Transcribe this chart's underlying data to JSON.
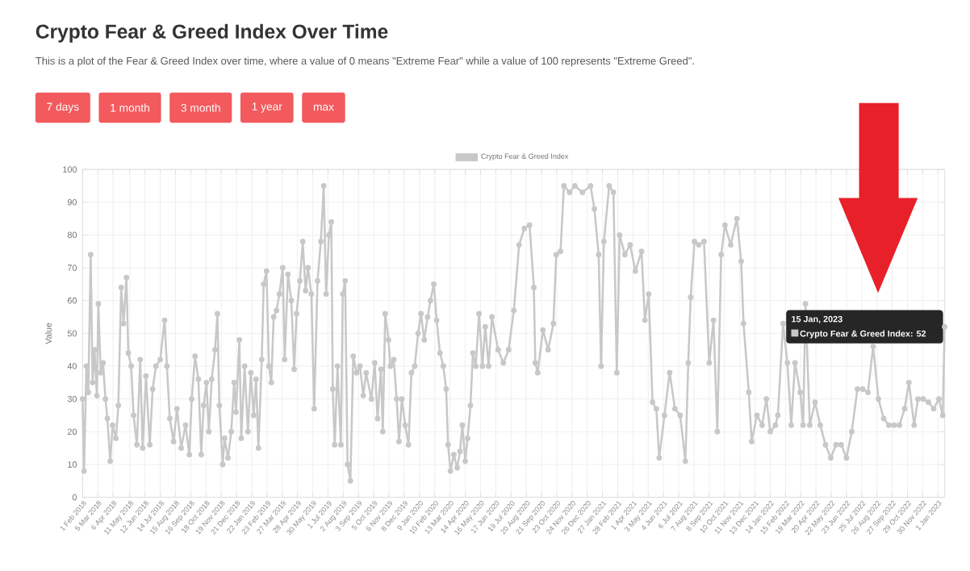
{
  "chart_data": {
    "type": "line",
    "title": "Crypto Fear & Greed Index Over Time",
    "subtitle": "This is a plot of the Fear & Greed Index over time, where a value of 0 means \"Extreme Fear\" while a value of 100 represents \"Extreme Greed\".",
    "ylabel": "Value",
    "annotations": [
      "7 days",
      "1 month",
      "3 month",
      "1 year",
      "max",
      {
        "text": "Crypto Fear & Greed Index: 52",
        "x": "2023-01-15",
        "y": 52
      },
      "15 Jan, 2023"
    ],
    "x": [
      "2018-02-01",
      "2018-02-04",
      "2018-02-09",
      "2018-02-13",
      "2018-02-18",
      "2018-02-22",
      "2018-02-26",
      "2018-03-03",
      "2018-03-06",
      "2018-03-11",
      "2018-03-16",
      "2018-03-21",
      "2018-03-25",
      "2018-03-31",
      "2018-04-05",
      "2018-04-12",
      "2018-04-17",
      "2018-04-23",
      "2018-04-28",
      "2018-05-04",
      "2018-05-08",
      "2018-05-14",
      "2018-05-19",
      "2018-05-26",
      "2018-06-02",
      "2018-06-07",
      "2018-06-14",
      "2018-06-22",
      "2018-06-28",
      "2018-07-05",
      "2018-07-14",
      "2018-07-23",
      "2018-07-28",
      "2018-08-03",
      "2018-08-11",
      "2018-08-18",
      "2018-08-27",
      "2018-09-05",
      "2018-09-13",
      "2018-09-18",
      "2018-09-25",
      "2018-10-02",
      "2018-10-08",
      "2018-10-13",
      "2018-10-19",
      "2018-10-24",
      "2018-10-30",
      "2018-11-06",
      "2018-11-11",
      "2018-11-15",
      "2018-11-22",
      "2018-11-26",
      "2018-12-03",
      "2018-12-10",
      "2018-12-16",
      "2018-12-20",
      "2018-12-27",
      "2018-12-31",
      "2019-01-07",
      "2019-01-14",
      "2019-01-20",
      "2019-01-26",
      "2019-01-31",
      "2019-02-05",
      "2019-02-12",
      "2019-02-16",
      "2019-02-22",
      "2019-02-27",
      "2019-03-04",
      "2019-03-09",
      "2019-03-15",
      "2019-03-21",
      "2019-03-28",
      "2019-04-01",
      "2019-04-08",
      "2019-04-15",
      "2019-04-21",
      "2019-04-26",
      "2019-05-03",
      "2019-05-09",
      "2019-05-15",
      "2019-05-20",
      "2019-05-27",
      "2019-06-02",
      "2019-06-09",
      "2019-06-16",
      "2019-06-22",
      "2019-06-27",
      "2019-07-03",
      "2019-07-08",
      "2019-07-11",
      "2019-07-15",
      "2019-07-21",
      "2019-07-28",
      "2019-08-01",
      "2019-08-06",
      "2019-08-11",
      "2019-08-17",
      "2019-08-23",
      "2019-08-30",
      "2019-09-06",
      "2019-09-13",
      "2019-09-19",
      "2019-09-30",
      "2019-10-07",
      "2019-10-13",
      "2019-10-20",
      "2019-10-24",
      "2019-10-29",
      "2019-11-05",
      "2019-11-09",
      "2019-11-16",
      "2019-11-22",
      "2019-11-27",
      "2019-12-03",
      "2019-12-10",
      "2019-12-17",
      "2019-12-23",
      "2019-12-30",
      "2020-01-06",
      "2020-01-12",
      "2020-01-19",
      "2020-01-26",
      "2020-02-01",
      "2020-02-08",
      "2020-02-14",
      "2020-02-21",
      "2020-02-28",
      "2020-03-05",
      "2020-03-09",
      "2020-03-14",
      "2020-03-21",
      "2020-03-28",
      "2020-04-03",
      "2020-04-08",
      "2020-04-14",
      "2020-04-19",
      "2020-04-25",
      "2020-04-30",
      "2020-05-06",
      "2020-05-13",
      "2020-05-20",
      "2020-05-26",
      "2020-06-02",
      "2020-06-09",
      "2020-06-22",
      "2020-07-03",
      "2020-07-14",
      "2020-07-25",
      "2020-08-05",
      "2020-08-16",
      "2020-08-27",
      "2020-09-05",
      "2020-09-08",
      "2020-09-13",
      "2020-09-24",
      "2020-10-05",
      "2020-10-16",
      "2020-10-22",
      "2020-10-31",
      "2020-11-07",
      "2020-11-19",
      "2020-11-30",
      "2020-12-16",
      "2021-01-02",
      "2021-01-10",
      "2021-01-19",
      "2021-01-24",
      "2021-01-30",
      "2021-02-10",
      "2021-02-19",
      "2021-02-26",
      "2021-03-04",
      "2021-03-15",
      "2021-03-26",
      "2021-04-06",
      "2021-04-19",
      "2021-04-26",
      "2021-05-04",
      "2021-05-12",
      "2021-05-20",
      "2021-05-26",
      "2021-06-06",
      "2021-06-17",
      "2021-06-28",
      "2021-07-09",
      "2021-07-20",
      "2021-07-26",
      "2021-07-31",
      "2021-08-08",
      "2021-08-17",
      "2021-08-28",
      "2021-09-08",
      "2021-09-17",
      "2021-09-25",
      "2021-10-03",
      "2021-10-11",
      "2021-10-23",
      "2021-11-05",
      "2021-11-14",
      "2021-11-19",
      "2021-11-30",
      "2021-12-06",
      "2021-12-17",
      "2021-12-28",
      "2022-01-06",
      "2022-01-14",
      "2022-01-25",
      "2022-01-30",
      "2022-02-10",
      "2022-02-19",
      "2022-02-27",
      "2022-03-07",
      "2022-03-18",
      "2022-03-24",
      "2022-03-29",
      "2022-04-07",
      "2022-04-18",
      "2022-04-29",
      "2022-05-10",
      "2022-05-21",
      "2022-06-01",
      "2022-06-12",
      "2022-06-23",
      "2022-07-04",
      "2022-07-16",
      "2022-07-27",
      "2022-08-07",
      "2022-08-18",
      "2022-08-29",
      "2022-09-09",
      "2022-09-20",
      "2022-10-01",
      "2022-10-12",
      "2022-10-23",
      "2022-11-01",
      "2022-11-12",
      "2022-11-20",
      "2022-12-01",
      "2022-12-12",
      "2022-12-23",
      "2023-01-03",
      "2023-01-11",
      "2023-01-15"
    ],
    "series": [
      {
        "name": "Crypto Fear & Greed Index",
        "color": "#c8c8c8",
        "values": [
          30,
          8,
          40,
          32,
          74,
          35,
          45,
          31,
          59,
          38,
          41,
          30,
          24,
          11,
          22,
          18,
          28,
          64,
          53,
          67,
          44,
          40,
          25,
          16,
          42,
          15,
          37,
          16,
          33,
          40,
          42,
          54,
          40,
          24,
          17,
          27,
          15,
          22,
          13,
          30,
          43,
          36,
          13,
          28,
          35,
          20,
          36,
          45,
          56,
          28,
          10,
          18,
          12,
          20,
          35,
          26,
          48,
          18,
          40,
          20,
          38,
          25,
          36,
          15,
          42,
          65,
          69,
          40,
          35,
          55,
          57,
          62,
          70,
          42,
          68,
          60,
          39,
          56,
          66,
          78,
          63,
          70,
          62,
          27,
          66,
          78,
          95,
          62,
          80,
          84,
          33,
          16,
          40,
          16,
          62,
          66,
          10,
          5,
          43,
          38,
          40,
          31,
          38,
          30,
          41,
          24,
          39,
          20,
          56,
          48,
          40,
          42,
          30,
          17,
          30,
          22,
          16,
          38,
          40,
          50,
          56,
          48,
          55,
          60,
          65,
          54,
          44,
          40,
          33,
          16,
          8,
          13,
          9,
          14,
          22,
          11,
          18,
          28,
          44,
          40,
          56,
          40,
          52,
          40,
          55,
          45,
          41,
          45,
          57,
          77,
          82,
          83,
          64,
          41,
          38,
          51,
          45,
          53,
          74,
          75,
          95,
          93,
          95,
          93,
          95,
          88,
          74,
          40,
          78,
          95,
          93,
          38,
          80,
          74,
          77,
          69,
          75,
          54,
          62,
          29,
          27,
          12,
          25,
          38,
          27,
          25,
          11,
          41,
          61,
          78,
          77,
          78,
          41,
          54,
          20,
          74,
          83,
          77,
          85,
          72,
          53,
          32,
          17,
          25,
          22,
          30,
          20,
          22,
          25,
          53,
          41,
          22,
          41,
          32,
          22,
          59,
          22,
          29,
          22,
          16,
          12,
          16,
          16,
          12,
          20,
          33,
          33,
          32,
          46,
          30,
          24,
          22,
          22,
          22,
          27,
          35,
          22,
          30,
          30,
          29,
          27,
          30,
          25,
          52
        ]
      }
    ],
    "xlim": [
      "2018-02-01",
      "2023-01-15"
    ],
    "xticks": [
      {
        "value": "2018-02-01",
        "label": "1 Feb 2018"
      },
      {
        "value": "2018-03-05",
        "label": "5 Mar 2018"
      },
      {
        "value": "2018-04-06",
        "label": "6 Apr 2018"
      },
      {
        "value": "2018-05-11",
        "label": "11 May 2018"
      },
      {
        "value": "2018-06-12",
        "label": "12 Jun 2018"
      },
      {
        "value": "2018-07-14",
        "label": "14 Jul 2018"
      },
      {
        "value": "2018-08-15",
        "label": "15 Aug 2018"
      },
      {
        "value": "2018-09-16",
        "label": "16 Sep 2018"
      },
      {
        "value": "2018-10-18",
        "label": "18 Oct 2018"
      },
      {
        "value": "2018-11-19",
        "label": "19 Nov 2018"
      },
      {
        "value": "2018-12-21",
        "label": "21 Dec 2018"
      },
      {
        "value": "2019-01-22",
        "label": "22 Jan 2019"
      },
      {
        "value": "2019-02-23",
        "label": "23 Feb 2019"
      },
      {
        "value": "2019-03-27",
        "label": "27 Mar 2019"
      },
      {
        "value": "2019-04-28",
        "label": "28 Apr 2019"
      },
      {
        "value": "2019-05-30",
        "label": "30 May 2019"
      },
      {
        "value": "2019-07-01",
        "label": "1 Jul 2019"
      },
      {
        "value": "2019-08-02",
        "label": "2 Aug 2019"
      },
      {
        "value": "2019-09-03",
        "label": "3 Sep 2019"
      },
      {
        "value": "2019-10-05",
        "label": "5 Oct 2019"
      },
      {
        "value": "2019-11-06",
        "label": "6 Nov 2019"
      },
      {
        "value": "2019-12-08",
        "label": "8 Dec 2019"
      },
      {
        "value": "2020-01-09",
        "label": "9 Jan 2020"
      },
      {
        "value": "2020-02-10",
        "label": "10 Feb 2020"
      },
      {
        "value": "2020-03-13",
        "label": "13 Mar 2020"
      },
      {
        "value": "2020-04-14",
        "label": "14 Apr 2020"
      },
      {
        "value": "2020-05-16",
        "label": "16 May 2020"
      },
      {
        "value": "2020-06-17",
        "label": "17 Jun 2020"
      },
      {
        "value": "2020-07-19",
        "label": "19 Jul 2020"
      },
      {
        "value": "2020-08-20",
        "label": "20 Aug 2020"
      },
      {
        "value": "2020-09-21",
        "label": "21 Sep 2020"
      },
      {
        "value": "2020-10-23",
        "label": "23 Oct 2020"
      },
      {
        "value": "2020-11-24",
        "label": "24 Nov 2020"
      },
      {
        "value": "2020-12-26",
        "label": "26 Dec 2020"
      },
      {
        "value": "2021-01-27",
        "label": "27 Jan 2021"
      },
      {
        "value": "2021-02-28",
        "label": "28 Feb 2021"
      },
      {
        "value": "2021-04-01",
        "label": "1 Apr 2021"
      },
      {
        "value": "2021-05-03",
        "label": "3 May 2021"
      },
      {
        "value": "2021-06-04",
        "label": "4 Jun 2021"
      },
      {
        "value": "2021-07-06",
        "label": "6 Jul 2021"
      },
      {
        "value": "2021-08-07",
        "label": "7 Aug 2021"
      },
      {
        "value": "2021-09-08",
        "label": "8 Sep 2021"
      },
      {
        "value": "2021-10-10",
        "label": "10 Oct 2021"
      },
      {
        "value": "2021-11-11",
        "label": "11 Nov 2021"
      },
      {
        "value": "2021-12-13",
        "label": "13 Dec 2021"
      },
      {
        "value": "2022-01-14",
        "label": "14 Jan 2022"
      },
      {
        "value": "2022-02-15",
        "label": "15 Feb 2022"
      },
      {
        "value": "2022-03-19",
        "label": "19 Mar 2022"
      },
      {
        "value": "2022-04-20",
        "label": "20 Apr 2022"
      },
      {
        "value": "2022-05-22",
        "label": "22 May 2022"
      },
      {
        "value": "2022-06-23",
        "label": "23 Jun 2022"
      },
      {
        "value": "2022-07-25",
        "label": "25 Jul 2022"
      },
      {
        "value": "2022-08-26",
        "label": "26 Aug 2022"
      },
      {
        "value": "2022-09-27",
        "label": "27 Sep 2022"
      },
      {
        "value": "2022-10-29",
        "label": "29 Oct 2022"
      },
      {
        "value": "2022-11-30",
        "label": "30 Nov 2022"
      },
      {
        "value": "2023-01-01",
        "label": "1 Jan 2023"
      }
    ],
    "ylim": [
      0,
      100
    ],
    "yticks": [
      0,
      10,
      20,
      30,
      40,
      50,
      60,
      70,
      80,
      90,
      100
    ],
    "grid": true,
    "legend": "top",
    "marker": "circle"
  }
}
